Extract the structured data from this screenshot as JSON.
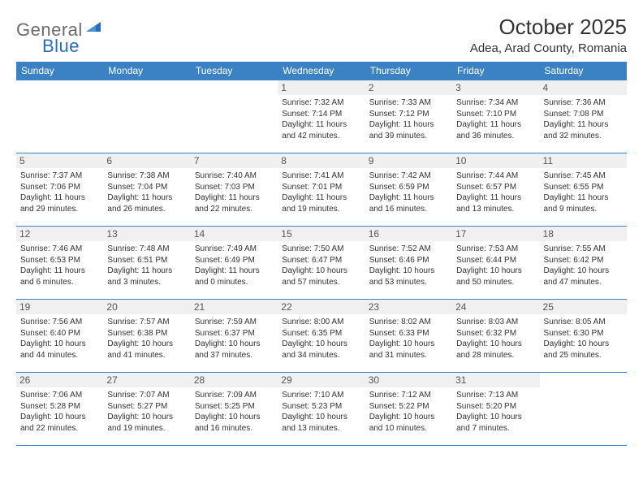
{
  "logo": {
    "text1": "General",
    "text2": "Blue"
  },
  "title": "October 2025",
  "location": "Adea, Arad County, Romania",
  "colors": {
    "header_bg": "#3b82c4",
    "header_text": "#ffffff",
    "daynum_bg": "#f0f0f0",
    "border": "#3b82c4",
    "logo_gray": "#6b6b6b",
    "logo_blue": "#2a6db8"
  },
  "dayNames": [
    "Sunday",
    "Monday",
    "Tuesday",
    "Wednesday",
    "Thursday",
    "Friday",
    "Saturday"
  ],
  "weeks": [
    [
      null,
      null,
      null,
      {
        "n": "1",
        "sr": "7:32 AM",
        "ss": "7:14 PM",
        "dl": "11 hours and 42 minutes."
      },
      {
        "n": "2",
        "sr": "7:33 AM",
        "ss": "7:12 PM",
        "dl": "11 hours and 39 minutes."
      },
      {
        "n": "3",
        "sr": "7:34 AM",
        "ss": "7:10 PM",
        "dl": "11 hours and 36 minutes."
      },
      {
        "n": "4",
        "sr": "7:36 AM",
        "ss": "7:08 PM",
        "dl": "11 hours and 32 minutes."
      }
    ],
    [
      {
        "n": "5",
        "sr": "7:37 AM",
        "ss": "7:06 PM",
        "dl": "11 hours and 29 minutes."
      },
      {
        "n": "6",
        "sr": "7:38 AM",
        "ss": "7:04 PM",
        "dl": "11 hours and 26 minutes."
      },
      {
        "n": "7",
        "sr": "7:40 AM",
        "ss": "7:03 PM",
        "dl": "11 hours and 22 minutes."
      },
      {
        "n": "8",
        "sr": "7:41 AM",
        "ss": "7:01 PM",
        "dl": "11 hours and 19 minutes."
      },
      {
        "n": "9",
        "sr": "7:42 AM",
        "ss": "6:59 PM",
        "dl": "11 hours and 16 minutes."
      },
      {
        "n": "10",
        "sr": "7:44 AM",
        "ss": "6:57 PM",
        "dl": "11 hours and 13 minutes."
      },
      {
        "n": "11",
        "sr": "7:45 AM",
        "ss": "6:55 PM",
        "dl": "11 hours and 9 minutes."
      }
    ],
    [
      {
        "n": "12",
        "sr": "7:46 AM",
        "ss": "6:53 PM",
        "dl": "11 hours and 6 minutes."
      },
      {
        "n": "13",
        "sr": "7:48 AM",
        "ss": "6:51 PM",
        "dl": "11 hours and 3 minutes."
      },
      {
        "n": "14",
        "sr": "7:49 AM",
        "ss": "6:49 PM",
        "dl": "11 hours and 0 minutes."
      },
      {
        "n": "15",
        "sr": "7:50 AM",
        "ss": "6:47 PM",
        "dl": "10 hours and 57 minutes."
      },
      {
        "n": "16",
        "sr": "7:52 AM",
        "ss": "6:46 PM",
        "dl": "10 hours and 53 minutes."
      },
      {
        "n": "17",
        "sr": "7:53 AM",
        "ss": "6:44 PM",
        "dl": "10 hours and 50 minutes."
      },
      {
        "n": "18",
        "sr": "7:55 AM",
        "ss": "6:42 PM",
        "dl": "10 hours and 47 minutes."
      }
    ],
    [
      {
        "n": "19",
        "sr": "7:56 AM",
        "ss": "6:40 PM",
        "dl": "10 hours and 44 minutes."
      },
      {
        "n": "20",
        "sr": "7:57 AM",
        "ss": "6:38 PM",
        "dl": "10 hours and 41 minutes."
      },
      {
        "n": "21",
        "sr": "7:59 AM",
        "ss": "6:37 PM",
        "dl": "10 hours and 37 minutes."
      },
      {
        "n": "22",
        "sr": "8:00 AM",
        "ss": "6:35 PM",
        "dl": "10 hours and 34 minutes."
      },
      {
        "n": "23",
        "sr": "8:02 AM",
        "ss": "6:33 PM",
        "dl": "10 hours and 31 minutes."
      },
      {
        "n": "24",
        "sr": "8:03 AM",
        "ss": "6:32 PM",
        "dl": "10 hours and 28 minutes."
      },
      {
        "n": "25",
        "sr": "8:05 AM",
        "ss": "6:30 PM",
        "dl": "10 hours and 25 minutes."
      }
    ],
    [
      {
        "n": "26",
        "sr": "7:06 AM",
        "ss": "5:28 PM",
        "dl": "10 hours and 22 minutes."
      },
      {
        "n": "27",
        "sr": "7:07 AM",
        "ss": "5:27 PM",
        "dl": "10 hours and 19 minutes."
      },
      {
        "n": "28",
        "sr": "7:09 AM",
        "ss": "5:25 PM",
        "dl": "10 hours and 16 minutes."
      },
      {
        "n": "29",
        "sr": "7:10 AM",
        "ss": "5:23 PM",
        "dl": "10 hours and 13 minutes."
      },
      {
        "n": "30",
        "sr": "7:12 AM",
        "ss": "5:22 PM",
        "dl": "10 hours and 10 minutes."
      },
      {
        "n": "31",
        "sr": "7:13 AM",
        "ss": "5:20 PM",
        "dl": "10 hours and 7 minutes."
      },
      null
    ]
  ],
  "labels": {
    "sunrise": "Sunrise:",
    "sunset": "Sunset:",
    "daylight": "Daylight:"
  }
}
